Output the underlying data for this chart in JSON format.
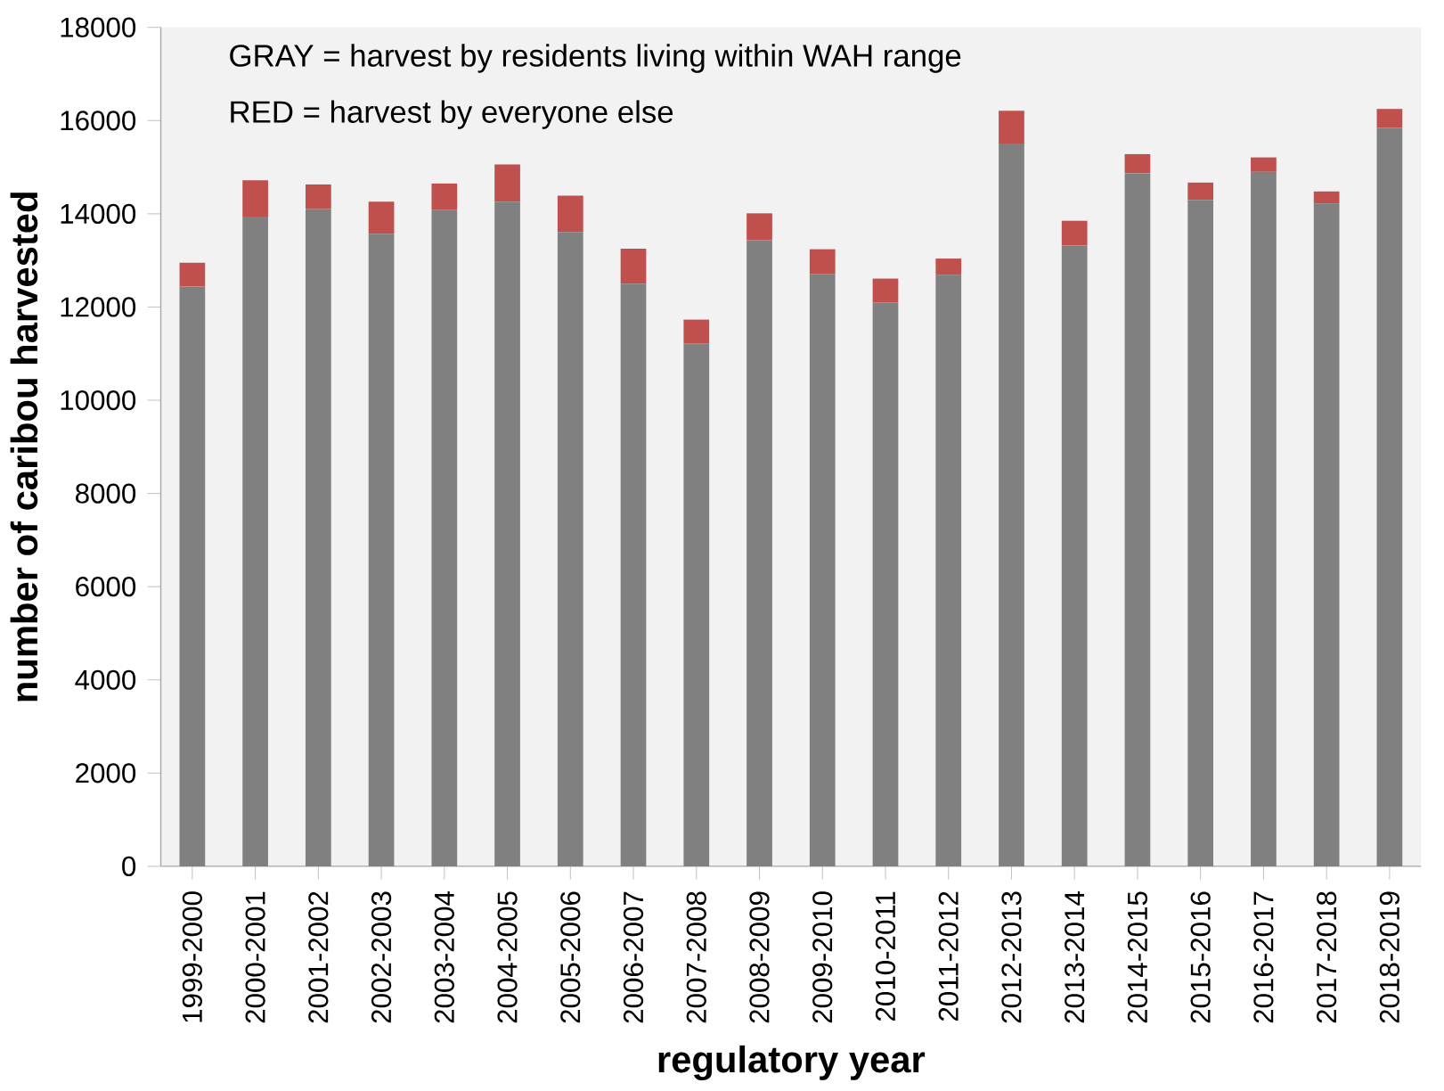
{
  "chart_data": {
    "type": "bar",
    "stacked": true,
    "xlabel": "regulatory year",
    "ylabel": "number of caribou harvested",
    "categories": [
      "1999-2000",
      "2000-2001",
      "2001-2002",
      "2002-2003",
      "2003-2004",
      "2004-2005",
      "2005-2006",
      "2006-2007",
      "2007-2008",
      "2008-2009",
      "2009-2010",
      "2010-2011",
      "2011-2012",
      "2012-2013",
      "2013-2014",
      "2014-2015",
      "2015-2016",
      "2016-2017",
      "2017-2018",
      "2018-2019"
    ],
    "series": [
      {
        "color": "#808080",
        "values": [
          12440,
          13940,
          14100,
          13570,
          14080,
          14260,
          13610,
          12500,
          11220,
          13440,
          12710,
          12100,
          12690,
          15510,
          13320,
          14870,
          14300,
          14900,
          14220,
          15840
        ]
      },
      {
        "color": "#c0504d",
        "values": [
          510,
          780,
          530,
          690,
          570,
          800,
          780,
          750,
          510,
          570,
          530,
          510,
          350,
          700,
          530,
          410,
          370,
          310,
          260,
          410
        ]
      }
    ],
    "ylim": [
      0,
      18000
    ],
    "yticks": [
      0,
      2000,
      4000,
      6000,
      8000,
      10000,
      12000,
      14000,
      16000,
      18000
    ],
    "annotations": [
      "GRAY = harvest by residents living within WAH range",
      "RED = harvest by everyone else"
    ]
  }
}
